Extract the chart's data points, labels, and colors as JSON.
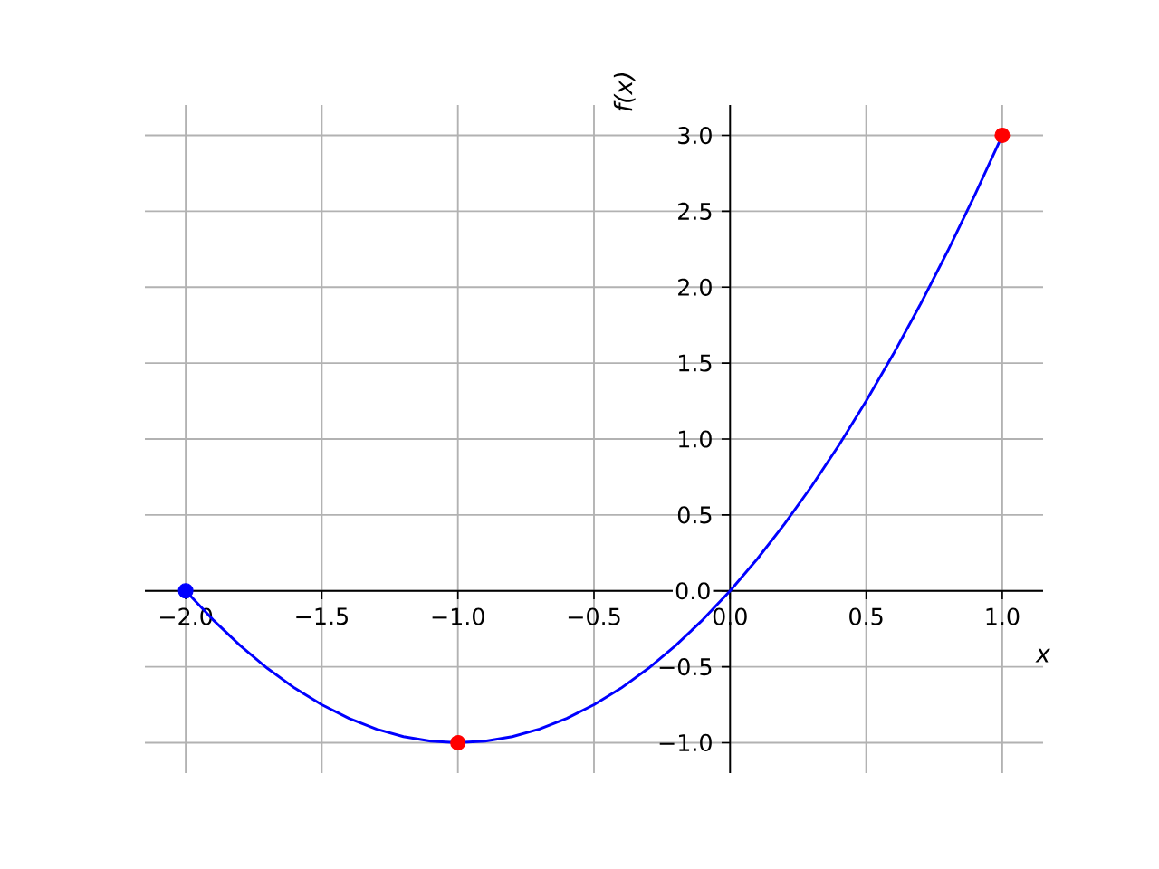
{
  "chart_data": {
    "type": "line",
    "xlabel": "x",
    "ylabel": "f(x)",
    "grid": true,
    "xlim": [
      -2.15,
      1.15
    ],
    "ylim": [
      -1.2,
      3.2
    ],
    "xticks": [
      {
        "value": -2,
        "label": "−2.0"
      },
      {
        "value": -1.5,
        "label": "−1.5"
      },
      {
        "value": -1,
        "label": "−1.0"
      },
      {
        "value": -0.5,
        "label": "−0.5"
      },
      {
        "value": 0,
        "label": "0.0"
      },
      {
        "value": 0.5,
        "label": "0.5"
      },
      {
        "value": 1,
        "label": "1.0"
      }
    ],
    "yticks": [
      {
        "value": -1,
        "label": "−1.0"
      },
      {
        "value": -0.5,
        "label": "−0.5"
      },
      {
        "value": 0,
        "label": "0.0"
      },
      {
        "value": 0.5,
        "label": "0.5"
      },
      {
        "value": 1,
        "label": "1.0"
      },
      {
        "value": 1.5,
        "label": "1.5"
      },
      {
        "value": 2,
        "label": "2.0"
      },
      {
        "value": 2.5,
        "label": "2.5"
      },
      {
        "value": 3,
        "label": "3.0"
      }
    ],
    "series": [
      {
        "color": "#0000ff",
        "marker": "none",
        "x": [
          -2,
          -1.9,
          -1.8,
          -1.7,
          -1.6,
          -1.5,
          -1.4,
          -1.3,
          -1.2,
          -1.1,
          -1,
          -0.9,
          -0.8,
          -0.7,
          -0.6,
          -0.5,
          -0.4,
          -0.3,
          -0.2,
          -0.1,
          0,
          0.1,
          0.2,
          0.3,
          0.4,
          0.5,
          0.6,
          0.7,
          0.8,
          0.9,
          1
        ],
        "values": [
          0,
          -0.19,
          -0.36,
          -0.51,
          -0.64,
          -0.75,
          -0.84,
          -0.91,
          -0.96,
          -0.99,
          -1,
          -0.99,
          -0.96,
          -0.91,
          -0.84,
          -0.75,
          -0.64,
          -0.51,
          -0.36,
          -0.19,
          0,
          0.21,
          0.44,
          0.69,
          0.96,
          1.25,
          1.56,
          1.89,
          2.24,
          2.61,
          3
        ]
      },
      {
        "type": "scatter",
        "color": "#0000ff",
        "marker": "circle",
        "x": [
          -2
        ],
        "values": [
          0
        ]
      },
      {
        "type": "scatter",
        "color": "#ff0000",
        "marker": "circle",
        "x": [
          -1,
          1
        ],
        "values": [
          -1,
          3
        ]
      }
    ]
  }
}
